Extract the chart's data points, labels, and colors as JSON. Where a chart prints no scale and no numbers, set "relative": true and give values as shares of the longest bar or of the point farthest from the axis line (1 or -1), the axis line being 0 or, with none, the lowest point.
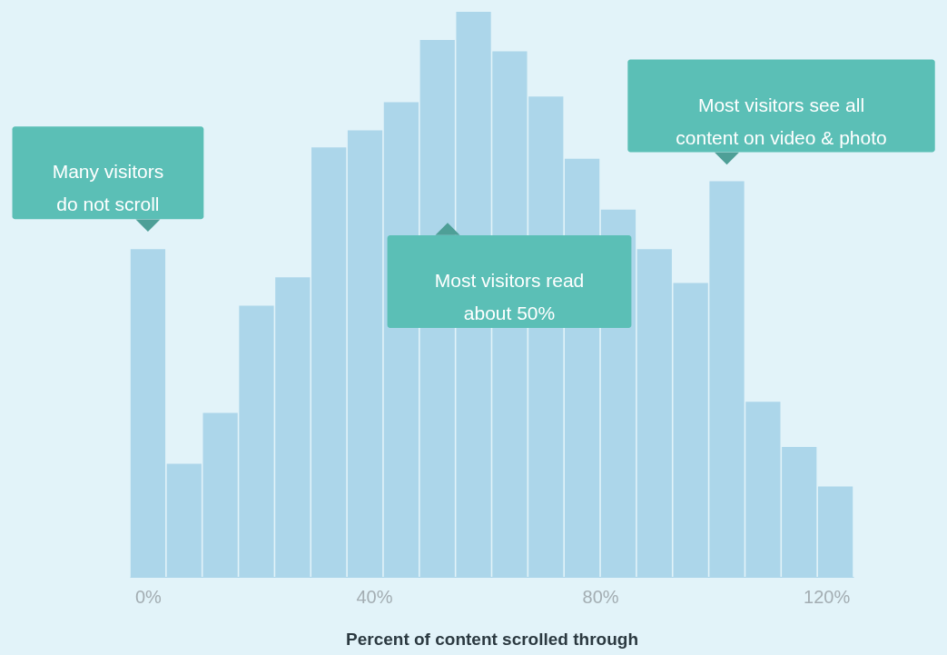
{
  "chart_data": {
    "type": "bar",
    "xlabel": "Percent of content scrolled through",
    "relative": true,
    "color": "#acd6ea",
    "x": [
      0,
      6.4,
      12.8,
      19.2,
      25.6,
      32,
      38.4,
      44.8,
      51.2,
      57.6,
      64,
      70.4,
      76.8,
      83.2,
      89.6,
      96,
      102.4,
      108.8,
      115.2,
      121.6
    ],
    "values": [
      0.58,
      0.2,
      0.29,
      0.48,
      0.53,
      0.76,
      0.79,
      0.84,
      0.95,
      1,
      0.93,
      0.85,
      0.74,
      0.65,
      0.58,
      0.52,
      0.7,
      0.31,
      0.23,
      0.16
    ],
    "xlim": [
      -3.2,
      124.8
    ],
    "xticks": [
      {
        "value": 0,
        "label": "0%"
      },
      {
        "value": 40,
        "label": "40%"
      },
      {
        "value": 80,
        "label": "80%"
      },
      {
        "value": 120,
        "label": "120%"
      }
    ],
    "annotations": [
      {
        "text": "Many visitors do not scroll",
        "x": 0,
        "y": 0.58
      },
      "Most visitors read about 50%",
      {
        "text": "Most visitors see all content on video & photo",
        "x": 102.4,
        "y": 0.7
      }
    ]
  }
}
